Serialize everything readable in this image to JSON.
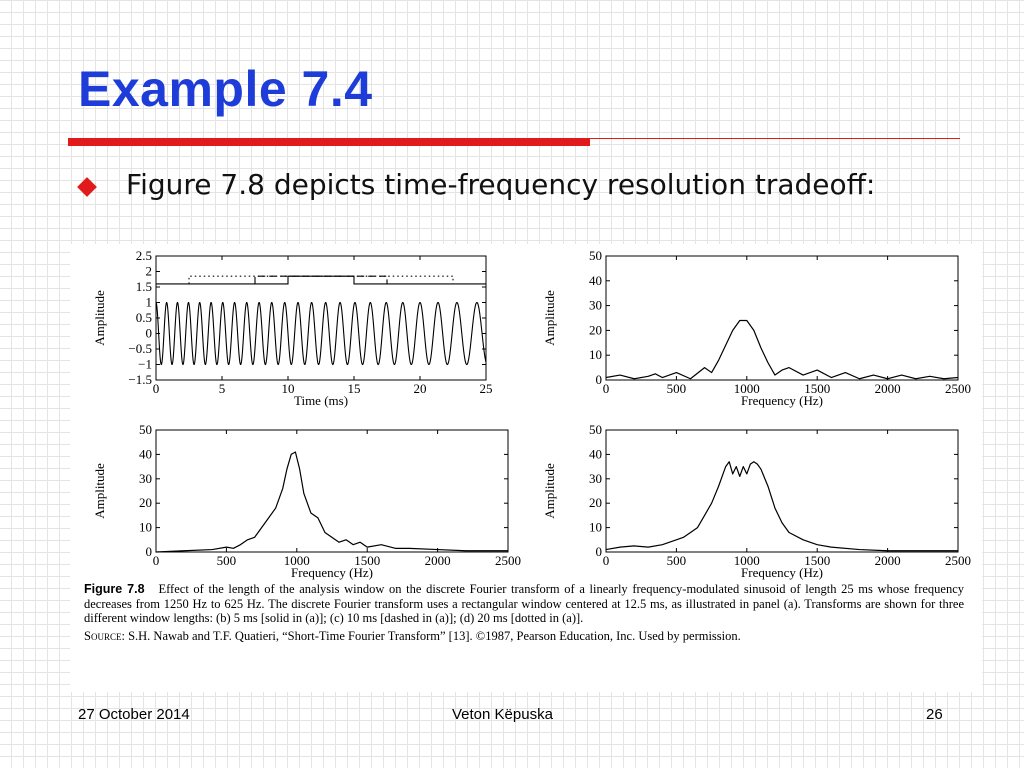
{
  "slide": {
    "title": "Example 7.4",
    "bullet": "Figure 7.8 depicts time-frequency resolution tradeoff:"
  },
  "footer": {
    "date": "27 October 2014",
    "author": "Veton Këpuska",
    "page": "26"
  },
  "caption": {
    "label": "Figure 7.8",
    "text": "Effect of the length of the analysis window on the discrete Fourier transform of a linearly frequency-modulated sinusoid of length 25 ms whose frequency decreases from 1250 Hz to 625 Hz. The discrete Fourier transform uses a rectangular window centered at 12.5 ms, as illustrated in panel (a). Transforms are shown for three different window lengths: (b) 5 ms [solid in (a)]; (c) 10 ms [dashed in (a)]; (d) 20 ms [dotted in (a)].",
    "source_label": "Source:",
    "source_text": "S.H. Nawab and T.F. Quatieri, “Short-Time Fourier Transform” [13]. ©1987, Pearson Education, Inc. Used by permission."
  },
  "colors": {
    "title": "#1e3dd8",
    "accent": "#e11b1b"
  },
  "chart_data": [
    {
      "type": "line",
      "xlabel": "Time (ms)",
      "ylabel": "Amplitude",
      "xlim": [
        0,
        25
      ],
      "ylim": [
        -1.5,
        2.5
      ],
      "xticks": [
        "0",
        "5",
        "10",
        "15",
        "20",
        "25"
      ],
      "yticks": [
        "2.5",
        "2",
        "1.5",
        "1",
        "0.5",
        "0",
        "−0.5",
        "−1",
        "−1.5"
      ],
      "series": [
        {
          "style": "sinusoid",
          "freq_start_hz": 1250,
          "freq_end_hz": 625,
          "amplitude": 1
        },
        {
          "style": "solid-window",
          "x": [
            0,
            10,
            10,
            15,
            15,
            25
          ],
          "y": [
            1.6,
            1.6,
            1.85,
            1.85,
            1.6,
            1.6
          ]
        },
        {
          "style": "dashed-window",
          "x": [
            7.5,
            7.5,
            17.5,
            17.5
          ],
          "y": [
            1.6,
            1.85,
            1.85,
            1.6
          ]
        },
        {
          "style": "dotted-window",
          "x": [
            2.5,
            2.5,
            22.5,
            22.5
          ],
          "y": [
            1.6,
            1.85,
            1.85,
            1.6
          ]
        }
      ]
    },
    {
      "type": "line",
      "xlabel": "Frequency (Hz)",
      "ylabel": "Amplitude",
      "xlim": [
        0,
        2500
      ],
      "ylim": [
        0,
        50
      ],
      "xticks": [
        "0",
        "500",
        "1000",
        "1500",
        "2000",
        "2500"
      ],
      "yticks": [
        "50",
        "40",
        "30",
        "20",
        "10",
        "0"
      ],
      "x": [
        0,
        100,
        200,
        300,
        350,
        400,
        500,
        600,
        700,
        750,
        800,
        850,
        900,
        950,
        1000,
        1050,
        1100,
        1150,
        1200,
        1250,
        1300,
        1400,
        1500,
        1600,
        1700,
        1800,
        1900,
        2000,
        2100,
        2200,
        2300,
        2400,
        2500
      ],
      "y": [
        1,
        2,
        0.5,
        1.5,
        2.5,
        1,
        3,
        0.5,
        5,
        3,
        8,
        14,
        20,
        24,
        24,
        20,
        13,
        7,
        2,
        4,
        5,
        2,
        4,
        1,
        3,
        0.5,
        2,
        0.5,
        2,
        0.5,
        1.5,
        0.5,
        1
      ]
    },
    {
      "type": "line",
      "xlabel": "Frequency (Hz)",
      "ylabel": "Amplitude",
      "xlim": [
        0,
        2500
      ],
      "ylim": [
        0,
        50
      ],
      "xticks": [
        "0",
        "500",
        "1000",
        "1500",
        "2000",
        "2500"
      ],
      "yticks": [
        "50",
        "40",
        "30",
        "20",
        "10",
        "0"
      ],
      "x": [
        0,
        200,
        400,
        500,
        550,
        600,
        650,
        700,
        750,
        800,
        850,
        900,
        930,
        960,
        990,
        1020,
        1050,
        1100,
        1150,
        1200,
        1250,
        1300,
        1350,
        1400,
        1450,
        1500,
        1600,
        1700,
        1800,
        2000,
        2200,
        2500
      ],
      "y": [
        0,
        0.5,
        1,
        2,
        1.5,
        3,
        5,
        6,
        10,
        14,
        18,
        26,
        34,
        40,
        41,
        34,
        24,
        16,
        14,
        8,
        6,
        4,
        5,
        3,
        4,
        2,
        3,
        1.5,
        1.5,
        1,
        0.5,
        0.5
      ]
    },
    {
      "type": "line",
      "xlabel": "Frequency (Hz)",
      "ylabel": "Amplitude",
      "xlim": [
        0,
        2500
      ],
      "ylim": [
        0,
        50
      ],
      "xticks": [
        "0",
        "500",
        "1000",
        "1500",
        "2000",
        "2500"
      ],
      "yticks": [
        "50",
        "40",
        "30",
        "20",
        "10",
        "0"
      ],
      "x": [
        0,
        100,
        200,
        300,
        400,
        500,
        550,
        600,
        650,
        700,
        750,
        800,
        850,
        875,
        900,
        925,
        950,
        975,
        1000,
        1025,
        1050,
        1075,
        1100,
        1150,
        1200,
        1250,
        1300,
        1400,
        1500,
        1600,
        1800,
        2000,
        2200,
        2500
      ],
      "y": [
        1,
        2,
        2.5,
        2,
        3,
        5,
        6,
        8,
        10,
        15,
        20,
        27,
        35,
        37,
        32,
        35,
        31,
        35,
        32,
        36,
        37,
        36,
        34,
        27,
        18,
        12,
        8,
        5,
        3,
        2,
        1,
        0.5,
        0.5,
        0.5
      ]
    }
  ]
}
